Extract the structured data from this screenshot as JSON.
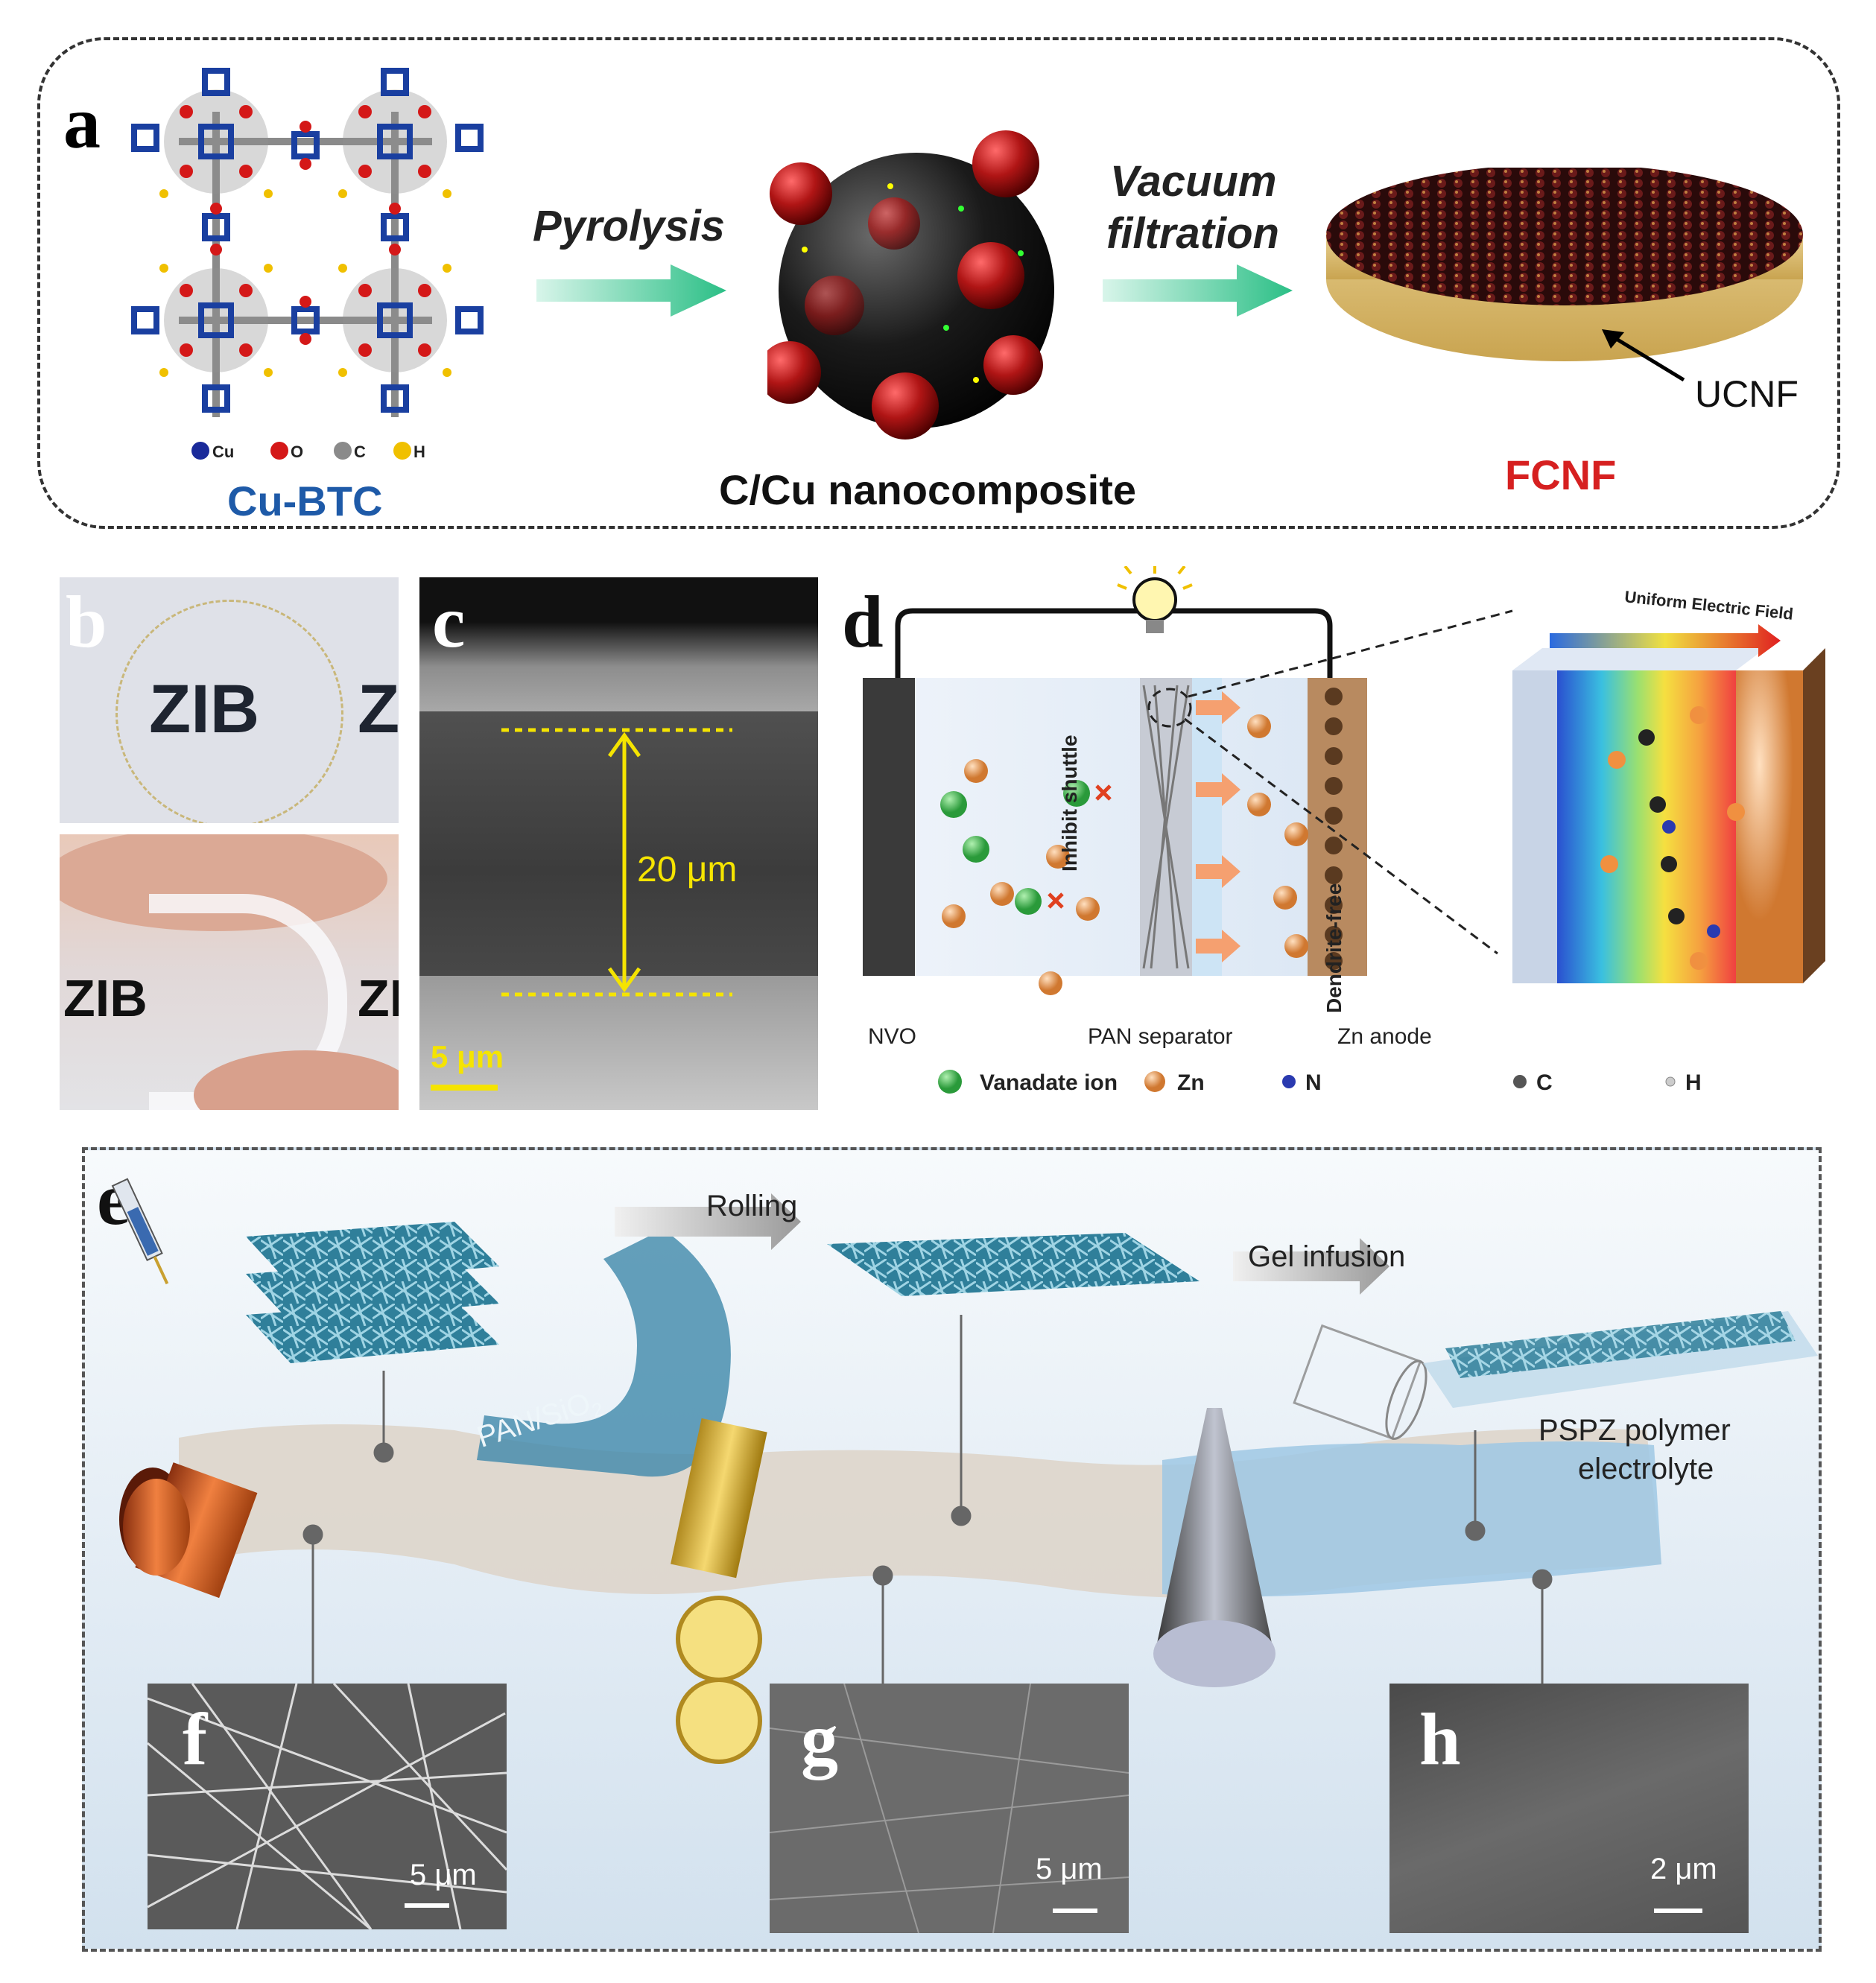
{
  "panels": {
    "a": {
      "letter": "a",
      "legend": [
        "Cu",
        "O",
        "C",
        "H"
      ],
      "precursor_label": "Cu-BTC",
      "step1": "Pyrolysis",
      "intermediate_label": "C/Cu nanocomposite",
      "step2_line1": "Vacuum",
      "step2_line2": "filtration",
      "product_label": "FCNF",
      "substrate_label": "UCNF"
    },
    "b": {
      "letter": "b",
      "text_top": "ZIB",
      "text_top_cut": "Z",
      "text_bottom": "ZIB",
      "text_bottom_cut": "ZI"
    },
    "c": {
      "letter": "c",
      "thickness": "20 μm",
      "scale": "5 μm"
    },
    "d": {
      "letter": "d",
      "field_label": "Uniform Electric Field",
      "inhibit": "Inhibit shuttle",
      "dendrite": "Dendrite-free",
      "cathode": "NVO",
      "separator": "PAN separator",
      "anode": "Zn anode",
      "legend": [
        "Vanadate ion",
        "Zn",
        "N",
        "C",
        "H"
      ]
    },
    "e": {
      "letter": "e",
      "step1": "Rolling",
      "step2": "Gel infusion",
      "fiber_label": "PAN/SiO",
      "fiber_label_sub": "2",
      "product_line1": "PSPZ polymer",
      "product_line2": "electrolyte"
    },
    "f": {
      "letter": "f",
      "scale": "5 μm"
    },
    "g": {
      "letter": "g",
      "scale": "5 μm"
    },
    "h": {
      "letter": "h",
      "scale": "2 μm"
    }
  },
  "colors": {
    "cu_blue": "#1e5aa8",
    "fcnf_red": "#d62020",
    "arrow_green": "#2bbf86",
    "cu_sphere": "#b01515",
    "yellow": "#f5e400"
  }
}
